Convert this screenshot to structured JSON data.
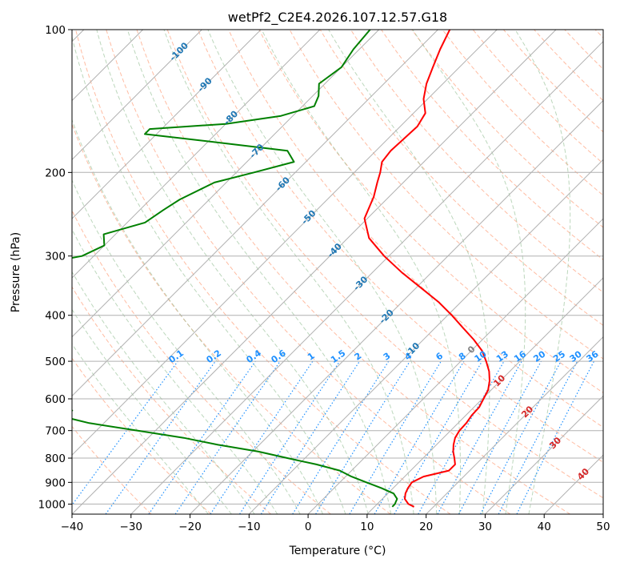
{
  "chart_data": {
    "type": "line",
    "title": "wetPf2_C2E4.2026.107.12.57.G18",
    "xlabel": "Temperature (°C)",
    "ylabel": "Pressure (hPa)",
    "xlim": [
      -40,
      50
    ],
    "ylim": [
      1050,
      100
    ],
    "y_scale": "log",
    "grid": true,
    "x_ticks": [
      -40,
      -30,
      -20,
      -10,
      0,
      10,
      20,
      30,
      40,
      50
    ],
    "y_ticks": [
      100,
      200,
      300,
      400,
      500,
      600,
      700,
      800,
      900,
      1000
    ],
    "colors": {
      "temperature": "#ff0000",
      "dewpoint": "#008000",
      "dry_adiabat": "#ffa07a",
      "moist_adiabat": "#8fbc8f",
      "mixing_ratio": "#1e90ff",
      "isotherm": "#b0b0b0",
      "cold_isotherm_label": "#1f77b4",
      "warm_isotherm_label": "#d62728",
      "zero_isotherm_label": "#808080"
    },
    "series": [
      {
        "key": "temperature",
        "pressure": [
          1013,
          1000,
          975,
          950,
          925,
          900,
          875,
          850,
          825,
          800,
          775,
          750,
          725,
          700,
          675,
          650,
          625,
          600,
          575,
          550,
          525,
          500,
          475,
          450,
          425,
          400,
          375,
          350,
          325,
          300,
          275,
          250,
          225,
          210,
          200,
          190,
          180,
          170,
          160,
          150,
          140,
          130,
          120,
          110,
          100
        ],
        "values": [
          16.7,
          15.3,
          13.8,
          13.0,
          12.5,
          12.2,
          13.2,
          16.5,
          16.5,
          15.3,
          14.0,
          12.9,
          12.0,
          11.5,
          11.4,
          11.0,
          10.9,
          10.2,
          9.5,
          8.2,
          6.5,
          4.3,
          1.8,
          -1.5,
          -5.3,
          -9.3,
          -13.8,
          -19.2,
          -25.0,
          -30.8,
          -36.4,
          -40.5,
          -42.6,
          -44.4,
          -45.6,
          -47.1,
          -47.5,
          -47.3,
          -47.1,
          -48.0,
          -50.7,
          -52.8,
          -54.5,
          -56.3,
          -58.0
        ],
        "label_text": []
      },
      {
        "key": "dewpoint",
        "pressure": [
          1013,
          1000,
          975,
          950,
          925,
          900,
          875,
          850,
          825,
          800,
          775,
          750,
          725,
          700,
          675,
          650,
          635,
          625,
          600,
          575,
          555,
          540,
          525,
          500,
          475,
          440,
          420,
          400,
          385,
          370,
          355,
          345,
          330,
          310,
          300,
          285,
          270,
          255,
          240,
          228,
          210,
          200,
          190,
          180,
          172,
          166,
          162,
          158,
          152,
          145,
          138,
          130,
          120,
          110,
          100
        ],
        "values": [
          13.0,
          13.0,
          12.5,
          11.0,
          8.0,
          4.5,
          1.0,
          -2.0,
          -7.0,
          -13.0,
          -19.0,
          -27.0,
          -34.0,
          -43.0,
          -52.5,
          -59.2,
          -57.5,
          -60.0,
          -75.0,
          -78.5,
          -74.5,
          -80.0,
          -80.0,
          -80.0,
          -95.0,
          -130.0,
          -125.0,
          -110.0,
          -90.0,
          -95.0,
          -110.0,
          -105.0,
          -97.0,
          -87.0,
          -82.0,
          -80.0,
          -82.0,
          -77.0,
          -76.0,
          -75.0,
          -72.0,
          -67.0,
          -62.0,
          -65.0,
          -80.0,
          -92.0,
          -92.0,
          -80.0,
          -72.0,
          -68.0,
          -69.0,
          -71.0,
          -70.0,
          -71.0,
          -71.5
        ],
        "label_text": []
      }
    ],
    "isotherm_labels": [
      "-100",
      "-90",
      "-80",
      "-70",
      "-60",
      "-50",
      "-40",
      "-30",
      "-20",
      "-10",
      "0",
      "10",
      "20",
      "30",
      "40"
    ],
    "mixing_ratio_labels": [
      "0.1",
      "0.2",
      "0.4",
      "0.6",
      "1",
      "1.5",
      "2",
      "3",
      "4",
      "6",
      "8",
      "10",
      "13",
      "16",
      "20",
      "25",
      "30",
      "36"
    ]
  }
}
